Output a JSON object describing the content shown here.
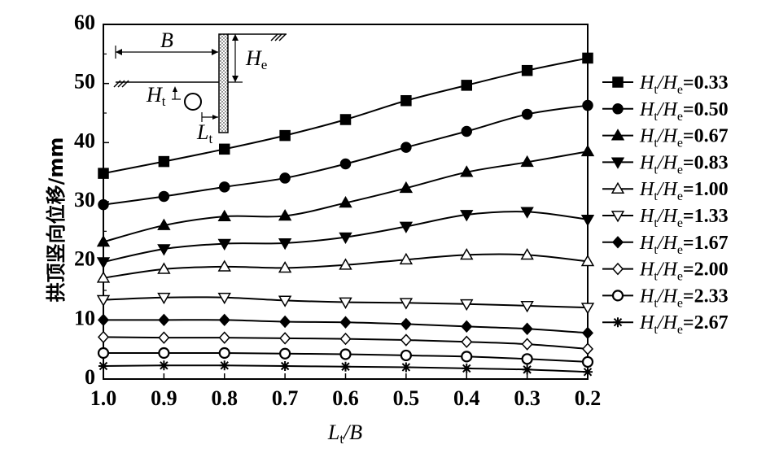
{
  "chart_data": {
    "type": "line",
    "x": [
      1.0,
      0.9,
      0.8,
      0.7,
      0.6,
      0.5,
      0.4,
      0.3,
      0.2
    ],
    "x_tick_labels": [
      "1.0",
      "0.9",
      "0.8",
      "0.7",
      "0.6",
      "0.5",
      "0.4",
      "0.3",
      "0.2"
    ],
    "xlim": [
      1.0,
      0.2
    ],
    "ylim": [
      0,
      60
    ],
    "y_ticks": [
      0,
      10,
      20,
      30,
      40,
      50,
      60
    ],
    "y_tick_labels": [
      "0",
      "10",
      "20",
      "30",
      "40",
      "50",
      "60"
    ],
    "xlabel": {
      "main": "L",
      "sub": "t",
      "rest": "/B"
    },
    "ylabel": "拱顶竖向位移/mm",
    "grid": false,
    "legend_position": "right",
    "series": [
      {
        "name": "Ht/He=0.33",
        "value_label": "=0.33",
        "marker": "square-filled",
        "values": [
          34.8,
          36.8,
          38.9,
          41.2,
          43.9,
          47.1,
          49.7,
          52.2,
          54.3
        ]
      },
      {
        "name": "Ht/He=0.50",
        "value_label": "=0.50",
        "marker": "circle-filled",
        "values": [
          29.5,
          30.9,
          32.5,
          34.0,
          36.4,
          39.2,
          41.9,
          44.8,
          46.3
        ]
      },
      {
        "name": "Ht/He=0.67",
        "value_label": "=0.67",
        "marker": "triangle-up-filled",
        "values": [
          23.2,
          26.0,
          27.5,
          27.6,
          29.8,
          32.3,
          35.0,
          36.7,
          38.5
        ]
      },
      {
        "name": "Ht/He=0.83",
        "value_label": "=0.83",
        "marker": "triangle-down-filled",
        "values": [
          19.8,
          22.0,
          22.9,
          23.0,
          24.0,
          25.8,
          27.8,
          28.3,
          27.0
        ]
      },
      {
        "name": "Ht/He=1.00",
        "value_label": "=1.00",
        "marker": "triangle-up-open",
        "values": [
          17.1,
          18.6,
          19.0,
          18.8,
          19.3,
          20.2,
          21.0,
          21.0,
          19.9
        ]
      },
      {
        "name": "Ht/He=1.33",
        "value_label": "=1.33",
        "marker": "triangle-down-open",
        "values": [
          13.4,
          13.8,
          13.8,
          13.3,
          13.0,
          12.9,
          12.7,
          12.4,
          12.1
        ]
      },
      {
        "name": "Ht/He=1.67",
        "value_label": "=1.67",
        "marker": "diamond-filled",
        "values": [
          10.0,
          10.0,
          10.0,
          9.7,
          9.6,
          9.3,
          8.9,
          8.5,
          7.8
        ]
      },
      {
        "name": "Ht/He=2.00",
        "value_label": "=2.00",
        "marker": "diamond-open",
        "values": [
          7.1,
          7.0,
          7.0,
          6.9,
          6.8,
          6.6,
          6.3,
          5.9,
          5.1
        ]
      },
      {
        "name": "Ht/He=2.33",
        "value_label": "=2.33",
        "marker": "circle-open",
        "values": [
          4.4,
          4.4,
          4.4,
          4.3,
          4.2,
          4.0,
          3.8,
          3.4,
          2.9
        ]
      },
      {
        "name": "Ht/He=2.67",
        "value_label": "=2.67",
        "marker": "asterisk",
        "values": [
          2.2,
          2.3,
          2.3,
          2.2,
          2.1,
          2.0,
          1.8,
          1.6,
          1.2
        ]
      }
    ],
    "legend_label_parts": {
      "h1": "H",
      "s1": "t",
      "slash": "/",
      "h2": "H",
      "s2": "e"
    },
    "inset": {
      "labels": {
        "B": "B",
        "He_main": "H",
        "He_sub": "e",
        "Ht_main": "H",
        "Ht_sub": "t",
        "Lt_main": "L",
        "Lt_sub": "t"
      }
    }
  }
}
